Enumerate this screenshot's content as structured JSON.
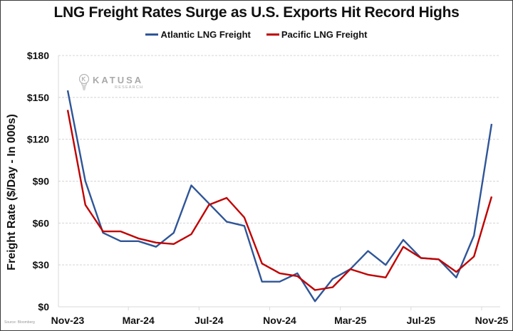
{
  "chart_data": {
    "type": "line",
    "title": "LNG Freight Rates Surge as U.S. Exports Hit Record Highs",
    "xlabel": "",
    "ylabel": "Freight Rate ($/Day - In 000s)",
    "ylim": [
      0,
      180
    ],
    "yticks": [
      0,
      30,
      60,
      90,
      120,
      150,
      180
    ],
    "ytick_labels": [
      "$0",
      "$30",
      "$60",
      "$90",
      "$120",
      "$150",
      "$180"
    ],
    "x": [
      "Nov-23",
      "Dec-23",
      "Jan-24",
      "Feb-24",
      "Mar-24",
      "Apr-24",
      "May-24",
      "Jun-24",
      "Jul-24",
      "Aug-24",
      "Sep-24",
      "Oct-24",
      "Nov-24",
      "Dec-24",
      "Jan-25",
      "Feb-25",
      "Mar-25",
      "Apr-25",
      "May-25",
      "Jun-25",
      "Jul-25",
      "Aug-25",
      "Sep-25",
      "Oct-25",
      "Nov-25"
    ],
    "xtick_labels": [
      "Nov-23",
      "Mar-24",
      "Jul-24",
      "Nov-24",
      "Mar-25",
      "Jul-25",
      "Nov-25"
    ],
    "grid": true,
    "legend_position": "top-center",
    "series": [
      {
        "name": "Atlantic LNG Freight",
        "color": "#2f5597",
        "values": [
          155,
          90,
          53,
          47,
          47,
          43,
          53,
          87,
          74,
          61,
          58,
          18,
          18,
          24,
          4,
          20,
          27,
          40,
          30,
          48,
          35,
          34,
          21,
          51,
          131
        ]
      },
      {
        "name": "Pacific LNG Freight",
        "color": "#c00000",
        "values": [
          141,
          73,
          54,
          54,
          49,
          46,
          45,
          52,
          73,
          78,
          64,
          31,
          24,
          22,
          12,
          14,
          27,
          23,
          21,
          43,
          35,
          34,
          25,
          36,
          79
        ]
      }
    ]
  },
  "watermark": {
    "brand": "KATUSA",
    "sub": "RESEARCH"
  },
  "source_note": "Source: Bloomberg"
}
